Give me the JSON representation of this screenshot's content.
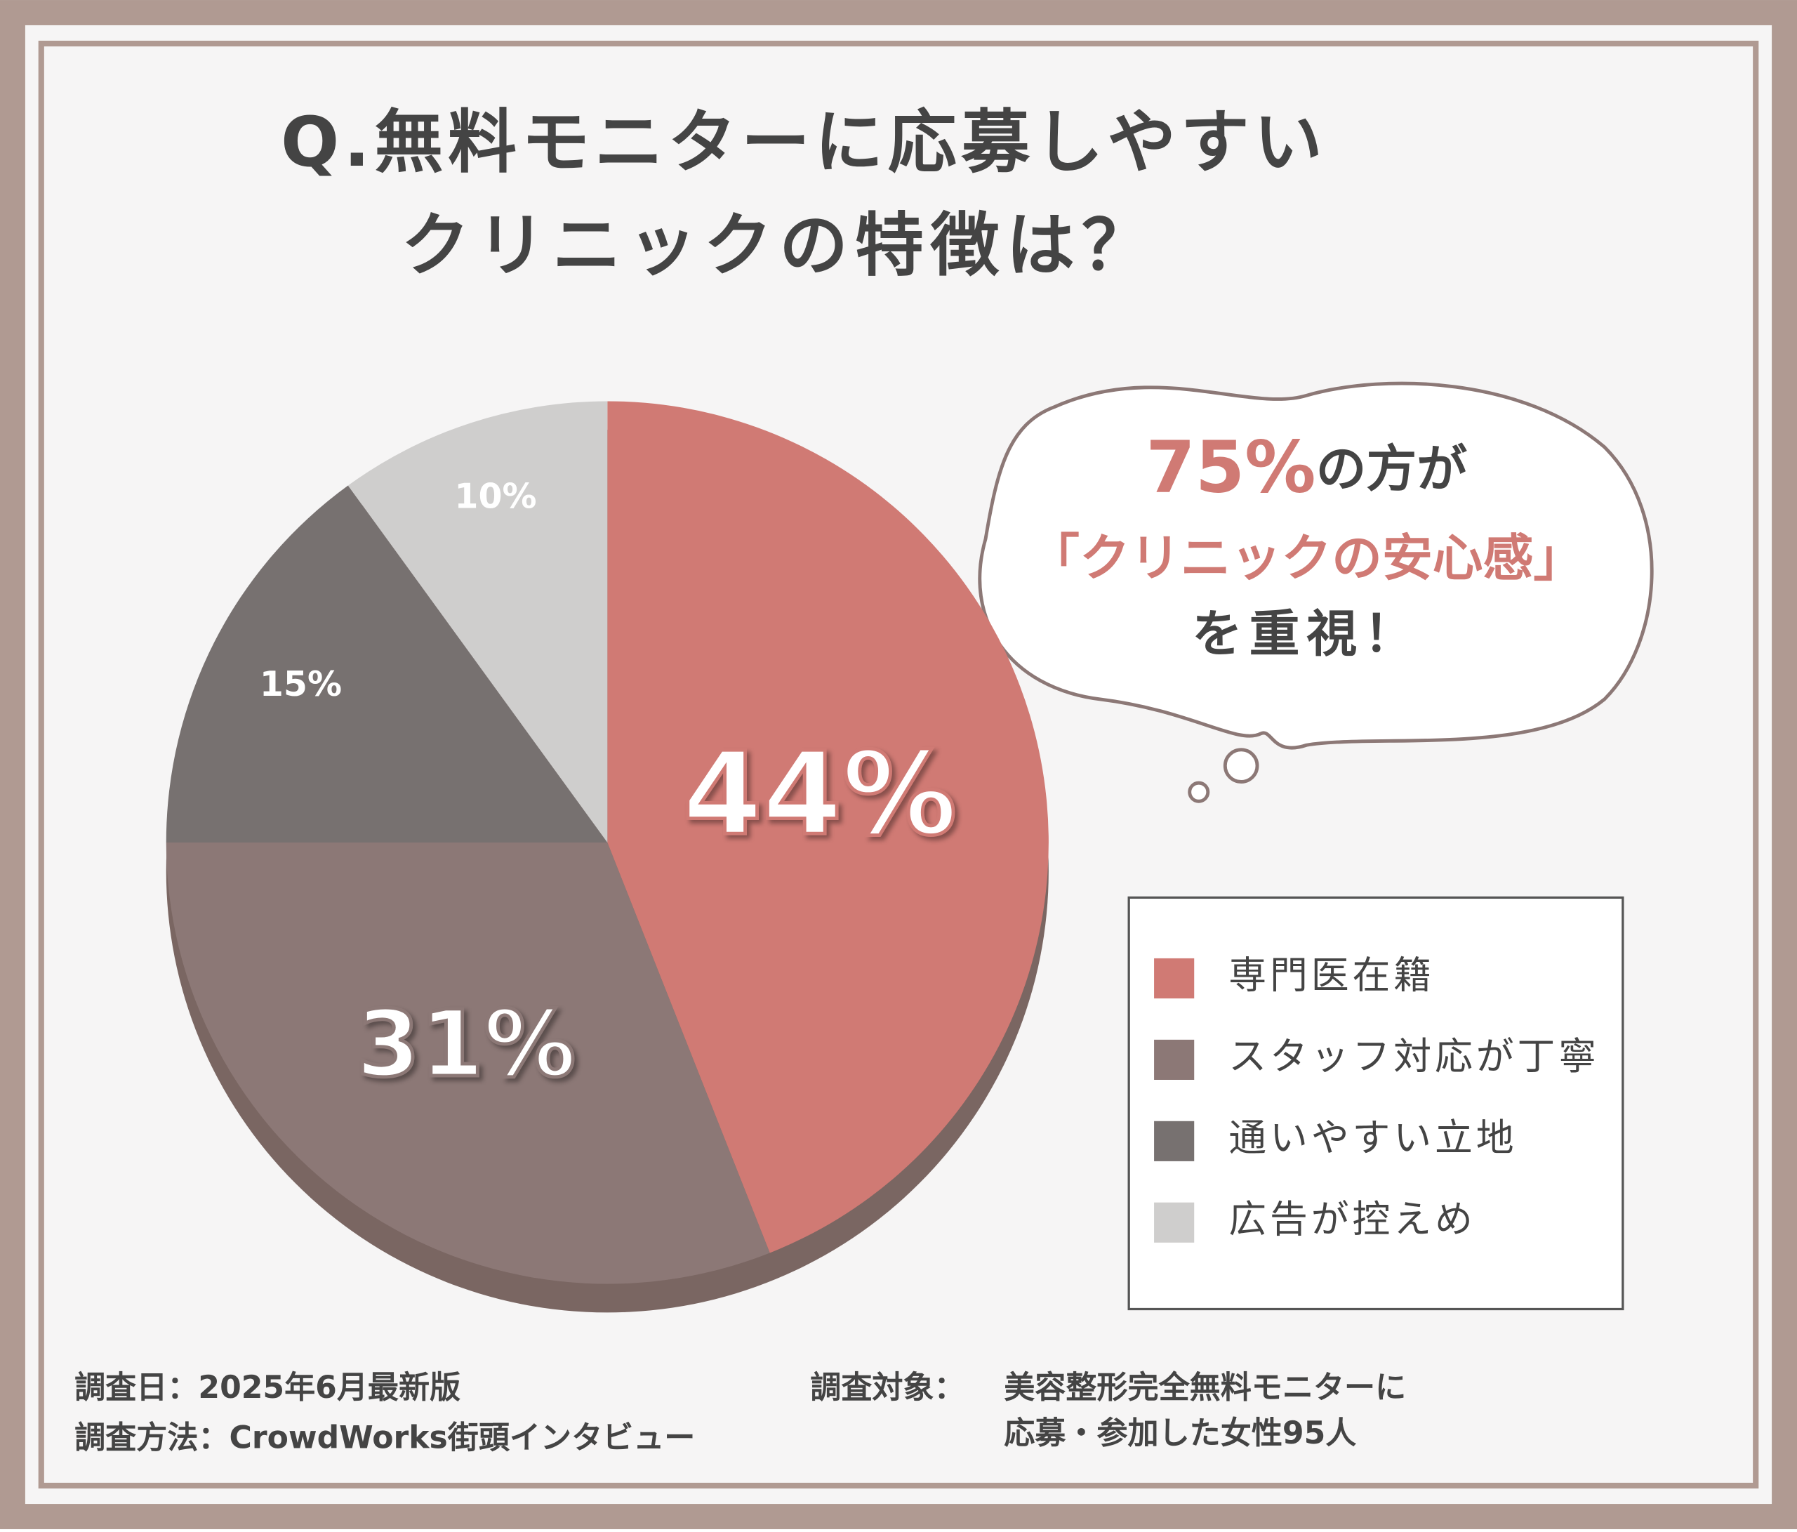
{
  "chart_data": {
    "type": "pie",
    "title": [
      "Q.無料モニターに応募しやすい",
      "クリニックの特徴は？"
    ],
    "categories": [
      "専門医在籍",
      "スタッフ対応が丁寧",
      "通いやすい立地",
      "広告が控えめ"
    ],
    "values": [
      44,
      31,
      15,
      10
    ],
    "value_labels": [
      "44%",
      "31%",
      "15%",
      "10%"
    ],
    "colors": [
      "#d07a74",
      "#8c7876",
      "#777170",
      "#cfcecd"
    ],
    "annotation": {
      "highlight": "75%",
      "lines": [
        "の方が",
        "「クリニックの安心感」",
        "を重視！"
      ]
    },
    "footer": {
      "left": [
        "調査日：2025年6月最新版",
        "調査方法：CrowdWorks街頭インタビュー"
      ],
      "right_label": "調査対象：",
      "right": [
        "美容整形完全無料モニターに",
        "応募・参加した女性95人"
      ]
    }
  }
}
